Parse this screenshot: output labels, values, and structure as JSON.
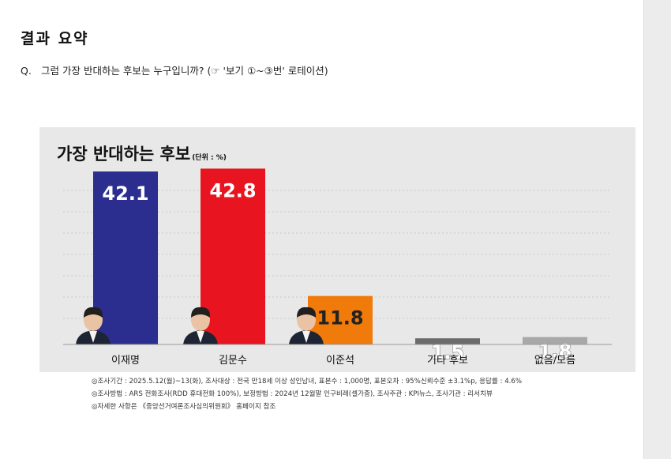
{
  "header": {
    "title": "결과 요약",
    "question_marker": "Q.",
    "question_text": "그럼 가장 반대하는 후보는 누구입니까? (☞ '보기 ①~③번' 로테이션)"
  },
  "chart_data": {
    "type": "bar",
    "title": "가장 반대하는 후보",
    "unit_label": "(단위 : %)",
    "categories": [
      "이재명",
      "김문수",
      "이준석",
      "기타 후보",
      "없음/모름"
    ],
    "values": [
      42.1,
      42.8,
      11.8,
      1.5,
      1.8
    ],
    "colors": [
      "#2b2e8f",
      "#e8141f",
      "#f07a0a",
      "#6b6b6b",
      "#a8a8a8"
    ],
    "value_label_colors": [
      "#ffffff",
      "#ffffff",
      "#222222",
      "#ffffff",
      "#ffffff"
    ],
    "ylim": [
      0,
      50
    ],
    "grid": true,
    "xlabel": "",
    "ylabel": ""
  },
  "notes": [
    "◎조사기간 : 2025.5.12(월)~13(화), 조사대상 : 전국 만18세 이상 성인남녀, 표본수 : 1,000명, 표본오차 : 95%신뢰수준 ±3.1%p, 응답률 : 4.6%",
    "◎조사방법 : ARS 전화조사(RDD 휴대전화 100%), 보정방법 : 2024년 12월말 인구비례(셀가중), 조사주관 : KPI뉴스, 조사기관 : 리서치뷰",
    "◎자세한 사항은 《중앙선거여론조사심의위원회》 홈페이지 참조"
  ]
}
